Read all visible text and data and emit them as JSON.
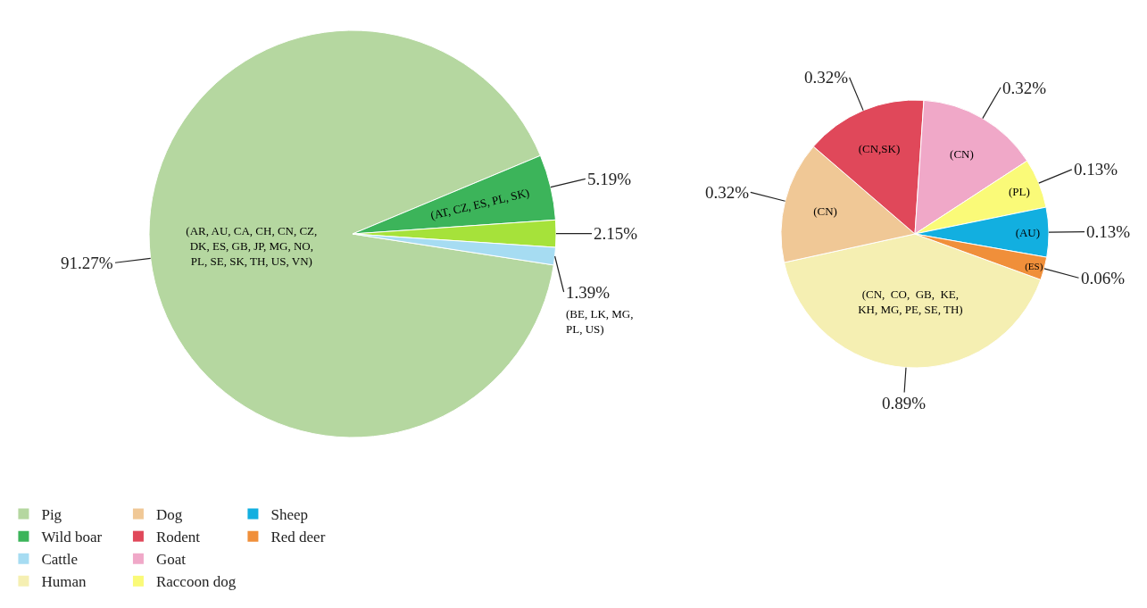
{
  "chart_data": [
    {
      "type": "pie",
      "categories": [
        "Pig",
        "Wild boar",
        null,
        "Cattle"
      ],
      "values": [
        91.27,
        5.19,
        2.15,
        1.39
      ],
      "colors": [
        "#b5d7a0",
        "#3cb45a",
        "#a6e23a",
        "#a6dcf2"
      ],
      "value_labels": [
        "91.27%",
        "5.19%",
        "2.15%",
        "1.39%"
      ],
      "data_labels": true,
      "legend": "bottom left",
      "annotations": [
        {
          "text": "(AR, AU, CA, CH, CN, CZ,\nDK, ES, GB, JP, MG, NO,\nPL, SE, SK, TH, US, VN)",
          "x": "Pig"
        },
        {
          "text": "(AT, CZ, ES, PL, SK)",
          "x": "Wild boar"
        },
        {
          "text": "(BE, LK, MG,\nPL, US)",
          "x": "Cattle"
        }
      ]
    },
    {
      "type": "pie",
      "categories": [
        "Human",
        "Dog",
        "Rodent",
        "Goat",
        "Raccoon dog",
        "Sheep",
        "Red deer"
      ],
      "values": [
        0.89,
        0.32,
        0.32,
        0.32,
        0.13,
        0.13,
        0.06
      ],
      "colors": [
        "#f5efb2",
        "#f0c896",
        "#e0485a",
        "#f0a8c8",
        "#fafa78",
        "#12afe0",
        "#f08f3a"
      ],
      "value_labels": [
        "0.89%",
        "0.32%",
        "0.32%",
        "0.32%",
        "0.13%",
        "0.13%",
        "0.06%"
      ],
      "data_labels": true,
      "legend": "bottom left",
      "annotations": [
        {
          "text": "(CN,  CO,  GB,  KE,\nKH, MG, PE, SE, TH)",
          "x": "Human"
        },
        {
          "text": "(CN)",
          "x": "Dog"
        },
        {
          "text": "(CN,SK)",
          "x": "Rodent"
        },
        {
          "text": "(CN)",
          "x": "Goat"
        },
        {
          "text": "(PL)",
          "x": "Raccoon dog"
        },
        {
          "text": "(AU)",
          "x": "Sheep"
        },
        {
          "text": "(ES)",
          "x": "Red deer"
        }
      ]
    }
  ]
}
